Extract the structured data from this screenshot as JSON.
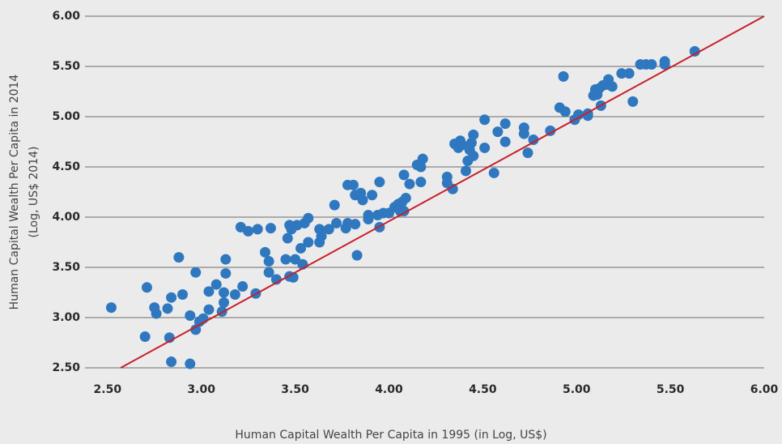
{
  "chart_data": {
    "type": "scatter",
    "xlabel": "Human Capital Wealth Per Capita in 1995 (in Log, US$)",
    "ylabel": [
      "Human Capital Wealth Per Capita in 2014",
      "(Log, US$ 2014)"
    ],
    "xlim": [
      2.38,
      6.0
    ],
    "ylim": [
      2.5,
      6.0
    ],
    "xticks": [
      {
        "value": 2.5,
        "label": "2.50"
      },
      {
        "value": 3,
        "label": "3.00"
      },
      {
        "value": 3.5,
        "label": "3.50"
      },
      {
        "value": 4,
        "label": "4.00"
      },
      {
        "value": 4.5,
        "label": "4.50"
      },
      {
        "value": 5,
        "label": "5.00"
      },
      {
        "value": 5.5,
        "label": "5.50"
      },
      {
        "value": 6,
        "label": "6.00"
      }
    ],
    "yticks": [
      {
        "value": 2.5,
        "label": "2.50"
      },
      {
        "value": 3,
        "label": "3.00"
      },
      {
        "value": 3.5,
        "label": "3.50"
      },
      {
        "value": 4,
        "label": "4.00"
      },
      {
        "value": 4.5,
        "label": "4.50"
      },
      {
        "value": 5,
        "label": "5.00"
      },
      {
        "value": 5.5,
        "label": "5.50"
      },
      {
        "value": 6,
        "label": "6.00"
      }
    ],
    "grid": true,
    "series": [
      {
        "color": "#2f78c0",
        "x": [
          2.52,
          2.71,
          2.7,
          2.75,
          2.76,
          2.82,
          2.83,
          2.84,
          2.84,
          2.88,
          2.9,
          2.94,
          2.94,
          2.97,
          2.97,
          2.99,
          3.01,
          3.04,
          3.04,
          3.08,
          3.11,
          3.12,
          3.12,
          3.13,
          3.13,
          3.18,
          3.21,
          3.22,
          3.25,
          3.3,
          3.29,
          3.34,
          3.36,
          3.36,
          3.37,
          3.4,
          3.45,
          3.46,
          3.47,
          3.48,
          3.47,
          3.49,
          3.5,
          3.51,
          3.53,
          3.54,
          3.55,
          3.57,
          3.57,
          3.63,
          3.63,
          3.64,
          3.68,
          3.71,
          3.72,
          3.77,
          3.78,
          3.78,
          3.81,
          3.82,
          3.82,
          3.83,
          3.85,
          3.86,
          3.89,
          3.89,
          3.91,
          3.94,
          3.95,
          3.95,
          3.97,
          4.0,
          4.03,
          4.05,
          4.06,
          4.07,
          4.08,
          4.09,
          4.08,
          4.11,
          4.15,
          4.17,
          4.17,
          4.18,
          4.31,
          4.31,
          4.34,
          4.35,
          4.37,
          4.38,
          4.39,
          4.41,
          4.42,
          4.43,
          4.44,
          4.45,
          4.45,
          4.51,
          4.51,
          4.56,
          4.58,
          4.62,
          4.62,
          4.72,
          4.72,
          4.74,
          4.77,
          4.86,
          4.91,
          4.94,
          4.93,
          4.99,
          5.01,
          5.06,
          5.06,
          5.09,
          5.1,
          5.11,
          5.12,
          5.13,
          5.14,
          5.16,
          5.17,
          5.19,
          5.24,
          5.28,
          5.3,
          5.34,
          5.37,
          5.4,
          5.47,
          5.47,
          5.63
        ],
        "y": [
          3.1,
          3.3,
          2.81,
          3.1,
          3.04,
          3.09,
          2.8,
          2.56,
          3.2,
          3.6,
          3.23,
          2.54,
          3.02,
          3.45,
          2.88,
          2.96,
          2.99,
          3.26,
          3.08,
          3.33,
          3.06,
          3.15,
          3.25,
          3.44,
          3.58,
          3.23,
          3.9,
          3.31,
          3.86,
          3.88,
          3.24,
          3.65,
          3.56,
          3.45,
          3.89,
          3.38,
          3.58,
          3.79,
          3.92,
          3.88,
          3.41,
          3.4,
          3.58,
          3.92,
          3.69,
          3.53,
          3.94,
          3.75,
          3.99,
          3.88,
          3.75,
          3.81,
          3.88,
          4.12,
          3.94,
          3.89,
          4.32,
          3.94,
          4.32,
          4.22,
          3.93,
          3.62,
          4.24,
          4.17,
          4.02,
          3.98,
          4.22,
          4.02,
          4.35,
          3.9,
          4.04,
          4.04,
          4.1,
          4.13,
          4.06,
          4.15,
          4.42,
          4.19,
          4.06,
          4.33,
          4.52,
          4.5,
          4.35,
          4.58,
          4.4,
          4.34,
          4.28,
          4.73,
          4.69,
          4.76,
          4.72,
          4.46,
          4.56,
          4.67,
          4.74,
          4.82,
          4.61,
          4.69,
          4.97,
          4.44,
          4.85,
          4.93,
          4.75,
          4.89,
          4.83,
          4.64,
          4.77,
          4.86,
          5.09,
          5.05,
          5.4,
          4.97,
          5.02,
          5.03,
          5.01,
          5.21,
          5.27,
          5.22,
          5.28,
          5.11,
          5.31,
          5.32,
          5.37,
          5.3,
          5.43,
          5.43,
          5.15,
          5.52,
          5.52,
          5.52,
          5.55,
          5.52,
          5.65
        ]
      }
    ],
    "line": {
      "color": "#c8202a",
      "x": [
        2.57,
        6.0
      ],
      "y": [
        2.5,
        6.0
      ]
    }
  }
}
